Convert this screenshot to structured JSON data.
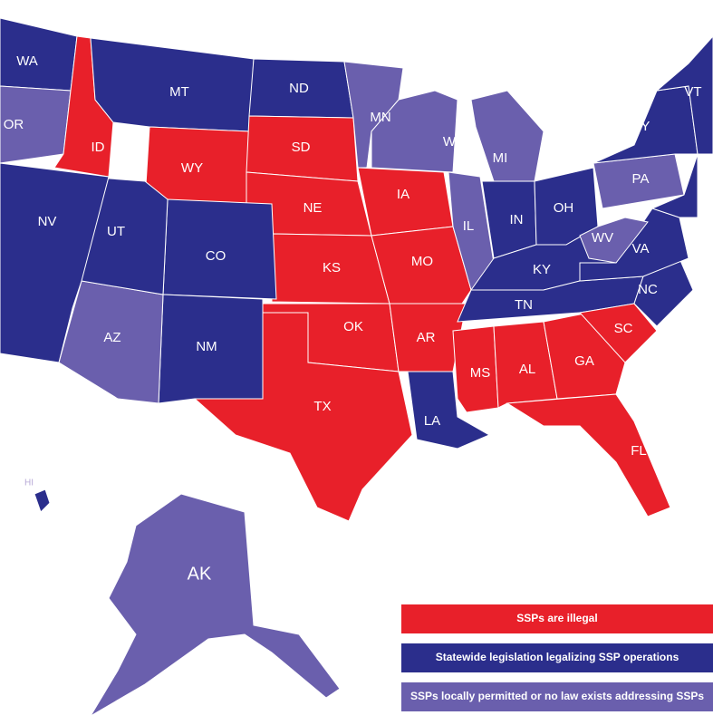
{
  "map": {
    "states": [
      {
        "label": "WA",
        "color": "#2b2e8c"
      },
      {
        "label": "OR",
        "color": "#6a5fad"
      },
      {
        "label": "ID",
        "color": "#e8202a"
      },
      {
        "label": "MT",
        "color": "#2b2e8c"
      },
      {
        "label": "WY",
        "color": "#e8202a"
      },
      {
        "label": "ND",
        "color": "#2b2e8c"
      },
      {
        "label": "SD",
        "color": "#e8202a"
      },
      {
        "label": "NE",
        "color": "#e8202a"
      },
      {
        "label": "KS",
        "color": "#e8202a"
      },
      {
        "label": "OK",
        "color": "#e8202a"
      },
      {
        "label": "TX",
        "color": "#e8202a"
      },
      {
        "label": "CO",
        "color": "#2b2e8c"
      },
      {
        "label": "NM",
        "color": "#2b2e8c"
      },
      {
        "label": "AZ",
        "color": "#6a5fad"
      },
      {
        "label": "UT",
        "color": "#2b2e8c"
      },
      {
        "label": "NV",
        "color": "#2b2e8c"
      },
      {
        "label": "MN",
        "color": "#6a5fad"
      },
      {
        "label": "IA",
        "color": "#e8202a"
      },
      {
        "label": "MO",
        "color": "#e8202a"
      },
      {
        "label": "AR",
        "color": "#e8202a"
      },
      {
        "label": "LA",
        "color": "#2b2e8c"
      },
      {
        "label": "WI",
        "color": "#6a5fad"
      },
      {
        "label": "IL",
        "color": "#6a5fad"
      },
      {
        "label": "MI",
        "color": "#6a5fad"
      },
      {
        "label": "IN",
        "color": "#2b2e8c"
      },
      {
        "label": "OH",
        "color": "#2b2e8c"
      },
      {
        "label": "KY",
        "color": "#2b2e8c"
      },
      {
        "label": "TN",
        "color": "#2b2e8c"
      },
      {
        "label": "MS",
        "color": "#e8202a"
      },
      {
        "label": "AL",
        "color": "#e8202a"
      },
      {
        "label": "GA",
        "color": "#e8202a"
      },
      {
        "label": "FL",
        "color": "#e8202a"
      },
      {
        "label": "SC",
        "color": "#e8202a"
      },
      {
        "label": "NC",
        "color": "#2b2e8c"
      },
      {
        "label": "VA",
        "color": "#2b2e8c"
      },
      {
        "label": "WV",
        "color": "#6a5fad"
      },
      {
        "label": "PA",
        "color": "#6a5fad"
      },
      {
        "label": "NY",
        "color": "#2b2e8c"
      },
      {
        "label": "VT",
        "color": "#2b2e8c"
      },
      {
        "label": "AK",
        "color": "#6a5fad"
      },
      {
        "label": "HI",
        "color": "#2b2e8c"
      }
    ],
    "legend": [
      {
        "label": "SSPs are illegal",
        "color": "#e8202a"
      },
      {
        "label": "Statewide legislation legalizing SSP operations",
        "color": "#2b2e8c"
      },
      {
        "label": "SSPs locally permitted or no law exists addressing SSPs",
        "color": "#6a5fad"
      }
    ]
  }
}
